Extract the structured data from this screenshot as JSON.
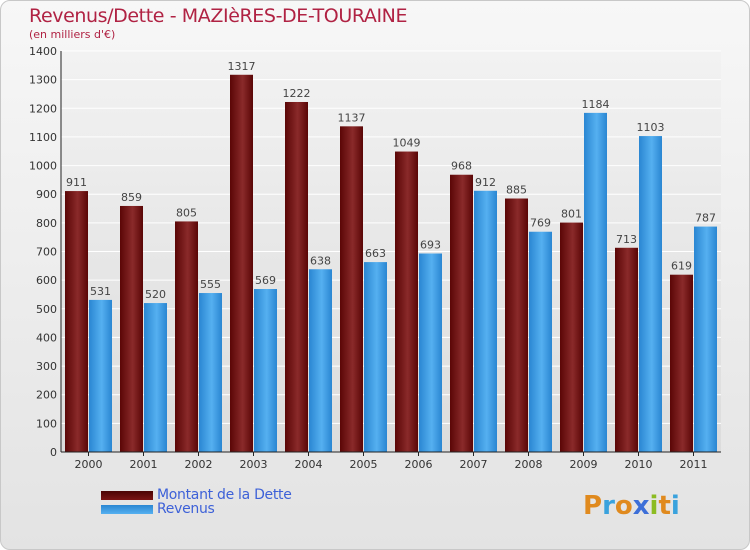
{
  "header": {
    "title": "Revenus/Dette - MAZIèRES-DE-TOURAINE",
    "subtitle": "(en milliers d'€)"
  },
  "chart_data": {
    "type": "bar",
    "title": "Revenus/Dette - MAZIèRES-DE-TOURAINE",
    "ylabel": "(en milliers d'€)",
    "xlabel": "",
    "ylim": [
      0,
      1400
    ],
    "yticks": [
      0,
      100,
      200,
      300,
      400,
      500,
      600,
      700,
      800,
      900,
      1000,
      1100,
      1200,
      1300,
      1400
    ],
    "grid": true,
    "categories": [
      "2000",
      "2001",
      "2002",
      "2003",
      "2004",
      "2005",
      "2006",
      "2007",
      "2008",
      "2009",
      "2010",
      "2011"
    ],
    "series": [
      {
        "name": "Montant de la Dette",
        "color": "#7a1414",
        "values": [
          911,
          859,
          805,
          1317,
          1222,
          1137,
          1049,
          968,
          885,
          801,
          713,
          619
        ]
      },
      {
        "name": "Revenus",
        "color": "#3f9ee3",
        "values": [
          531,
          520,
          555,
          569,
          638,
          663,
          693,
          912,
          769,
          1184,
          1103,
          787
        ]
      }
    ],
    "legend": "bottom-left"
  },
  "legend": {
    "items": [
      {
        "label": "Montant de la Dette",
        "color": "#6b0a0a"
      },
      {
        "label": "Revenus",
        "color": "#3b9be0"
      }
    ]
  },
  "logo": {
    "text": "Proxiti"
  }
}
